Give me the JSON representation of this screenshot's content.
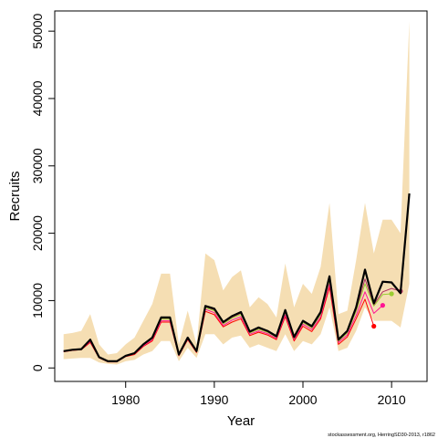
{
  "chart_data": {
    "type": "line",
    "xlabel": "Year",
    "ylabel": "Recruits",
    "xlim": [
      1972,
      2014
    ],
    "ylim": [
      -2000,
      53000
    ],
    "xticks": [
      1980,
      1990,
      2000,
      2010
    ],
    "yticks": [
      0,
      10000,
      20000,
      30000,
      40000,
      50000
    ],
    "grid": false,
    "footnote": "stockassessment.org, HerringSD30-2013, r1862",
    "colors": {
      "band": "#f5deb3",
      "main": "#000000",
      "retro1": "#ff0000",
      "retro2": "#ff1493",
      "retro3": "#9acd32",
      "retro4": "#b03060"
    },
    "x": [
      1973,
      1974,
      1975,
      1976,
      1977,
      1978,
      1979,
      1980,
      1981,
      1982,
      1983,
      1984,
      1985,
      1986,
      1987,
      1988,
      1989,
      1990,
      1991,
      1992,
      1993,
      1994,
      1995,
      1996,
      1997,
      1998,
      1999,
      2000,
      2001,
      2002,
      2003,
      2004,
      2005,
      2006,
      2007,
      2008,
      2009,
      2010,
      2011,
      2012
    ],
    "band_upper": [
      5000,
      5200,
      5500,
      8000,
      3500,
      2000,
      2200,
      3500,
      4500,
      7000,
      9500,
      14000,
      14000,
      3500,
      8500,
      3500,
      17000,
      16000,
      11500,
      13500,
      14500,
      9000,
      10500,
      9500,
      7500,
      15500,
      9000,
      12500,
      11000,
      15000,
      24500,
      8000,
      8500,
      16000,
      24500,
      17000,
      22000,
      22000,
      20000,
      51500
    ],
    "band_lower": [
      1300,
      1400,
      1500,
      1500,
      800,
      600,
      500,
      1000,
      1200,
      2000,
      2500,
      4000,
      4000,
      1000,
      3000,
      1500,
      5000,
      5000,
      3500,
      4500,
      4800,
      3000,
      3500,
      3000,
      2500,
      5000,
      2500,
      4000,
      3500,
      5000,
      9000,
      2500,
      3000,
      5500,
      9000,
      7000,
      7000,
      7000,
      6000,
      12500
    ],
    "series": [
      {
        "key": "main",
        "x": [
          1973,
          1974,
          1975,
          1976,
          1977,
          1978,
          1979,
          1980,
          1981,
          1982,
          1983,
          1984,
          1985,
          1986,
          1987,
          1988,
          1989,
          1990,
          1991,
          1992,
          1993,
          1994,
          1995,
          1996,
          1997,
          1998,
          1999,
          2000,
          2001,
          2002,
          2003,
          2004,
          2005,
          2006,
          2007,
          2008,
          2009,
          2010,
          2011,
          2012
        ],
        "values": [
          2500,
          2700,
          2800,
          4200,
          1600,
          1000,
          1000,
          1800,
          2200,
          3500,
          4500,
          7500,
          7500,
          2000,
          4500,
          2500,
          9200,
          8800,
          6800,
          7700,
          8300,
          5400,
          6000,
          5500,
          4700,
          8600,
          4600,
          7000,
          6200,
          8300,
          13600,
          4200,
          5500,
          9000,
          14600,
          9600,
          12800,
          12700,
          11100,
          25900
        ],
        "marker": false,
        "width": 2.2
      },
      {
        "key": "retro1",
        "x": [
          1973,
          1974,
          1975,
          1976,
          1977,
          1978,
          1979,
          1980,
          1981,
          1982,
          1983,
          1984,
          1985,
          1986,
          1987,
          1988,
          1989,
          1990,
          1991,
          1992,
          1993,
          1994,
          1995,
          1996,
          1997,
          1998,
          1999,
          2000,
          2001,
          2002,
          2003,
          2004,
          2005,
          2006,
          2007,
          2008
        ],
        "values": [
          2400,
          2600,
          2700,
          3800,
          1500,
          900,
          900,
          1700,
          2000,
          3200,
          4000,
          6800,
          6800,
          1800,
          4200,
          2300,
          8400,
          7900,
          6100,
          6800,
          7300,
          4800,
          5300,
          4900,
          4200,
          7600,
          4000,
          6200,
          5400,
          7300,
          12000,
          3500,
          4600,
          7300,
          10200,
          6200
        ],
        "marker": true,
        "width": 1
      },
      {
        "key": "retro2",
        "x": [
          1973,
          1974,
          1975,
          1976,
          1977,
          1978,
          1979,
          1980,
          1981,
          1982,
          1983,
          1984,
          1985,
          1986,
          1987,
          1988,
          1989,
          1990,
          1991,
          1992,
          1993,
          1994,
          1995,
          1996,
          1997,
          1998,
          1999,
          2000,
          2001,
          2002,
          2003,
          2004,
          2005,
          2006,
          2007,
          2008,
          2009
        ],
        "values": [
          2450,
          2650,
          2750,
          3950,
          1550,
          950,
          950,
          1750,
          2100,
          3300,
          4200,
          7000,
          7000,
          1900,
          4300,
          2400,
          8700,
          8200,
          6300,
          7100,
          7600,
          5000,
          5500,
          5100,
          4400,
          7900,
          4200,
          6500,
          5700,
          7600,
          12500,
          3800,
          4900,
          7800,
          11300,
          8100,
          9300
        ],
        "marker": true,
        "width": 1
      },
      {
        "key": "retro3",
        "x": [
          1973,
          1974,
          1975,
          1976,
          1977,
          1978,
          1979,
          1980,
          1981,
          1982,
          1983,
          1984,
          1985,
          1986,
          1987,
          1988,
          1989,
          1990,
          1991,
          1992,
          1993,
          1994,
          1995,
          1996,
          1997,
          1998,
          1999,
          2000,
          2001,
          2002,
          2003,
          2004,
          2005,
          2006,
          2007,
          2008,
          2009,
          2010
        ],
        "values": [
          2480,
          2680,
          2780,
          4100,
          1580,
          980,
          980,
          1780,
          2150,
          3400,
          4350,
          7250,
          7250,
          1950,
          4400,
          2450,
          8950,
          8500,
          6550,
          7400,
          7950,
          5200,
          5750,
          5300,
          4550,
          8250,
          4400,
          6750,
          5950,
          7950,
          13000,
          4000,
          5200,
          8400,
          12500,
          9200,
          10900,
          11000
        ],
        "marker": true,
        "width": 1
      },
      {
        "key": "retro4",
        "x": [
          1973,
          1974,
          1975,
          1976,
          1977,
          1978,
          1979,
          1980,
          1981,
          1982,
          1983,
          1984,
          1985,
          1986,
          1987,
          1988,
          1989,
          1990,
          1991,
          1992,
          1993,
          1994,
          1995,
          1996,
          1997,
          1998,
          1999,
          2000,
          2001,
          2002,
          2003,
          2004,
          2005,
          2006,
          2007,
          2008,
          2009,
          2010,
          2011
        ],
        "values": [
          2490,
          2690,
          2790,
          4150,
          1590,
          990,
          990,
          1790,
          2180,
          3450,
          4420,
          7380,
          7380,
          1980,
          4450,
          2480,
          9080,
          8650,
          6680,
          7550,
          8130,
          5300,
          5880,
          5400,
          4630,
          8420,
          4500,
          6880,
          6080,
          8130,
          13300,
          4100,
          5350,
          8700,
          13200,
          9400,
          11300,
          11800,
          11400
        ],
        "marker": true,
        "width": 1
      }
    ]
  }
}
